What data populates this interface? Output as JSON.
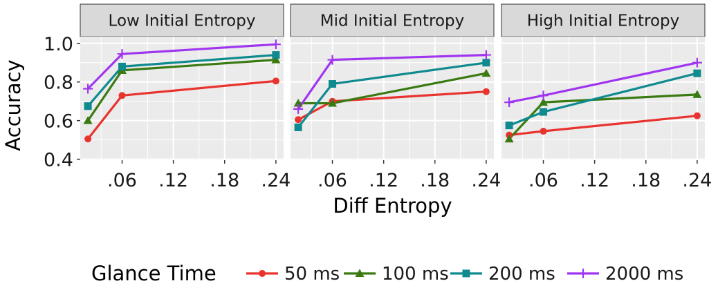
{
  "chart_data": {
    "type": "line",
    "facets": [
      {
        "title": "Low Initial Entropy",
        "x": [
          0.02,
          0.06,
          0.24
        ],
        "series": [
          {
            "name": "50 ms",
            "values": [
              0.505,
              0.73,
              0.805
            ]
          },
          {
            "name": "100 ms",
            "values": [
              0.6,
              0.86,
              0.915
            ]
          },
          {
            "name": "200 ms",
            "values": [
              0.675,
              0.88,
              0.94
            ]
          },
          {
            "name": "2000 ms",
            "values": [
              0.765,
              0.945,
              0.995
            ]
          }
        ]
      },
      {
        "title": "Mid Initial Entropy",
        "x": [
          0.02,
          0.06,
          0.24
        ],
        "series": [
          {
            "name": "50 ms",
            "values": [
              0.605,
              0.7,
              0.75
            ]
          },
          {
            "name": "100 ms",
            "values": [
              0.69,
              0.69,
              0.845
            ]
          },
          {
            "name": "200 ms",
            "values": [
              0.565,
              0.79,
              0.9
            ]
          },
          {
            "name": "2000 ms",
            "values": [
              0.66,
              0.915,
              0.94
            ]
          }
        ]
      },
      {
        "title": "High Initial Entropy",
        "x": [
          0.02,
          0.06,
          0.24
        ],
        "series": [
          {
            "name": "50 ms",
            "values": [
              0.525,
              0.545,
              0.625
            ]
          },
          {
            "name": "100 ms",
            "values": [
              0.505,
              0.695,
              0.735
            ]
          },
          {
            "name": "200 ms",
            "values": [
              0.575,
              0.645,
              0.845
            ]
          },
          {
            "name": "2000 ms",
            "values": [
              0.695,
              0.73,
              0.9
            ]
          }
        ]
      }
    ],
    "xlabel": "Diff Entropy",
    "ylabel": "Accuracy",
    "xlim": [
      0.011,
      0.249
    ],
    "ylim": [
      0.395,
      1.035
    ],
    "x_ticks": [
      0.06,
      0.12,
      0.18,
      0.24
    ],
    "x_tick_labels": [
      ".06",
      ".12",
      ".18",
      ".24"
    ],
    "y_ticks": [
      0.4,
      0.6,
      0.8,
      1.0
    ],
    "y_tick_labels": [
      "0.4",
      "0.6",
      "0.8",
      "1.0"
    ],
    "grid": true,
    "legend": {
      "title": "Glance Time",
      "position": "bottom",
      "entries": [
        "50 ms",
        "100 ms",
        "200 ms",
        "2000 ms"
      ]
    },
    "colors": {
      "50 ms": "#e8332e",
      "100 ms": "#3a7a12",
      "200 ms": "#0f8a8f",
      "2000 ms": "#a035f0"
    },
    "markers": {
      "50 ms": "circle",
      "100 ms": "triangle",
      "200 ms": "square",
      "2000 ms": "plus"
    },
    "panel_background": "#ebebeb",
    "strip_background": "#d9d9d9"
  }
}
